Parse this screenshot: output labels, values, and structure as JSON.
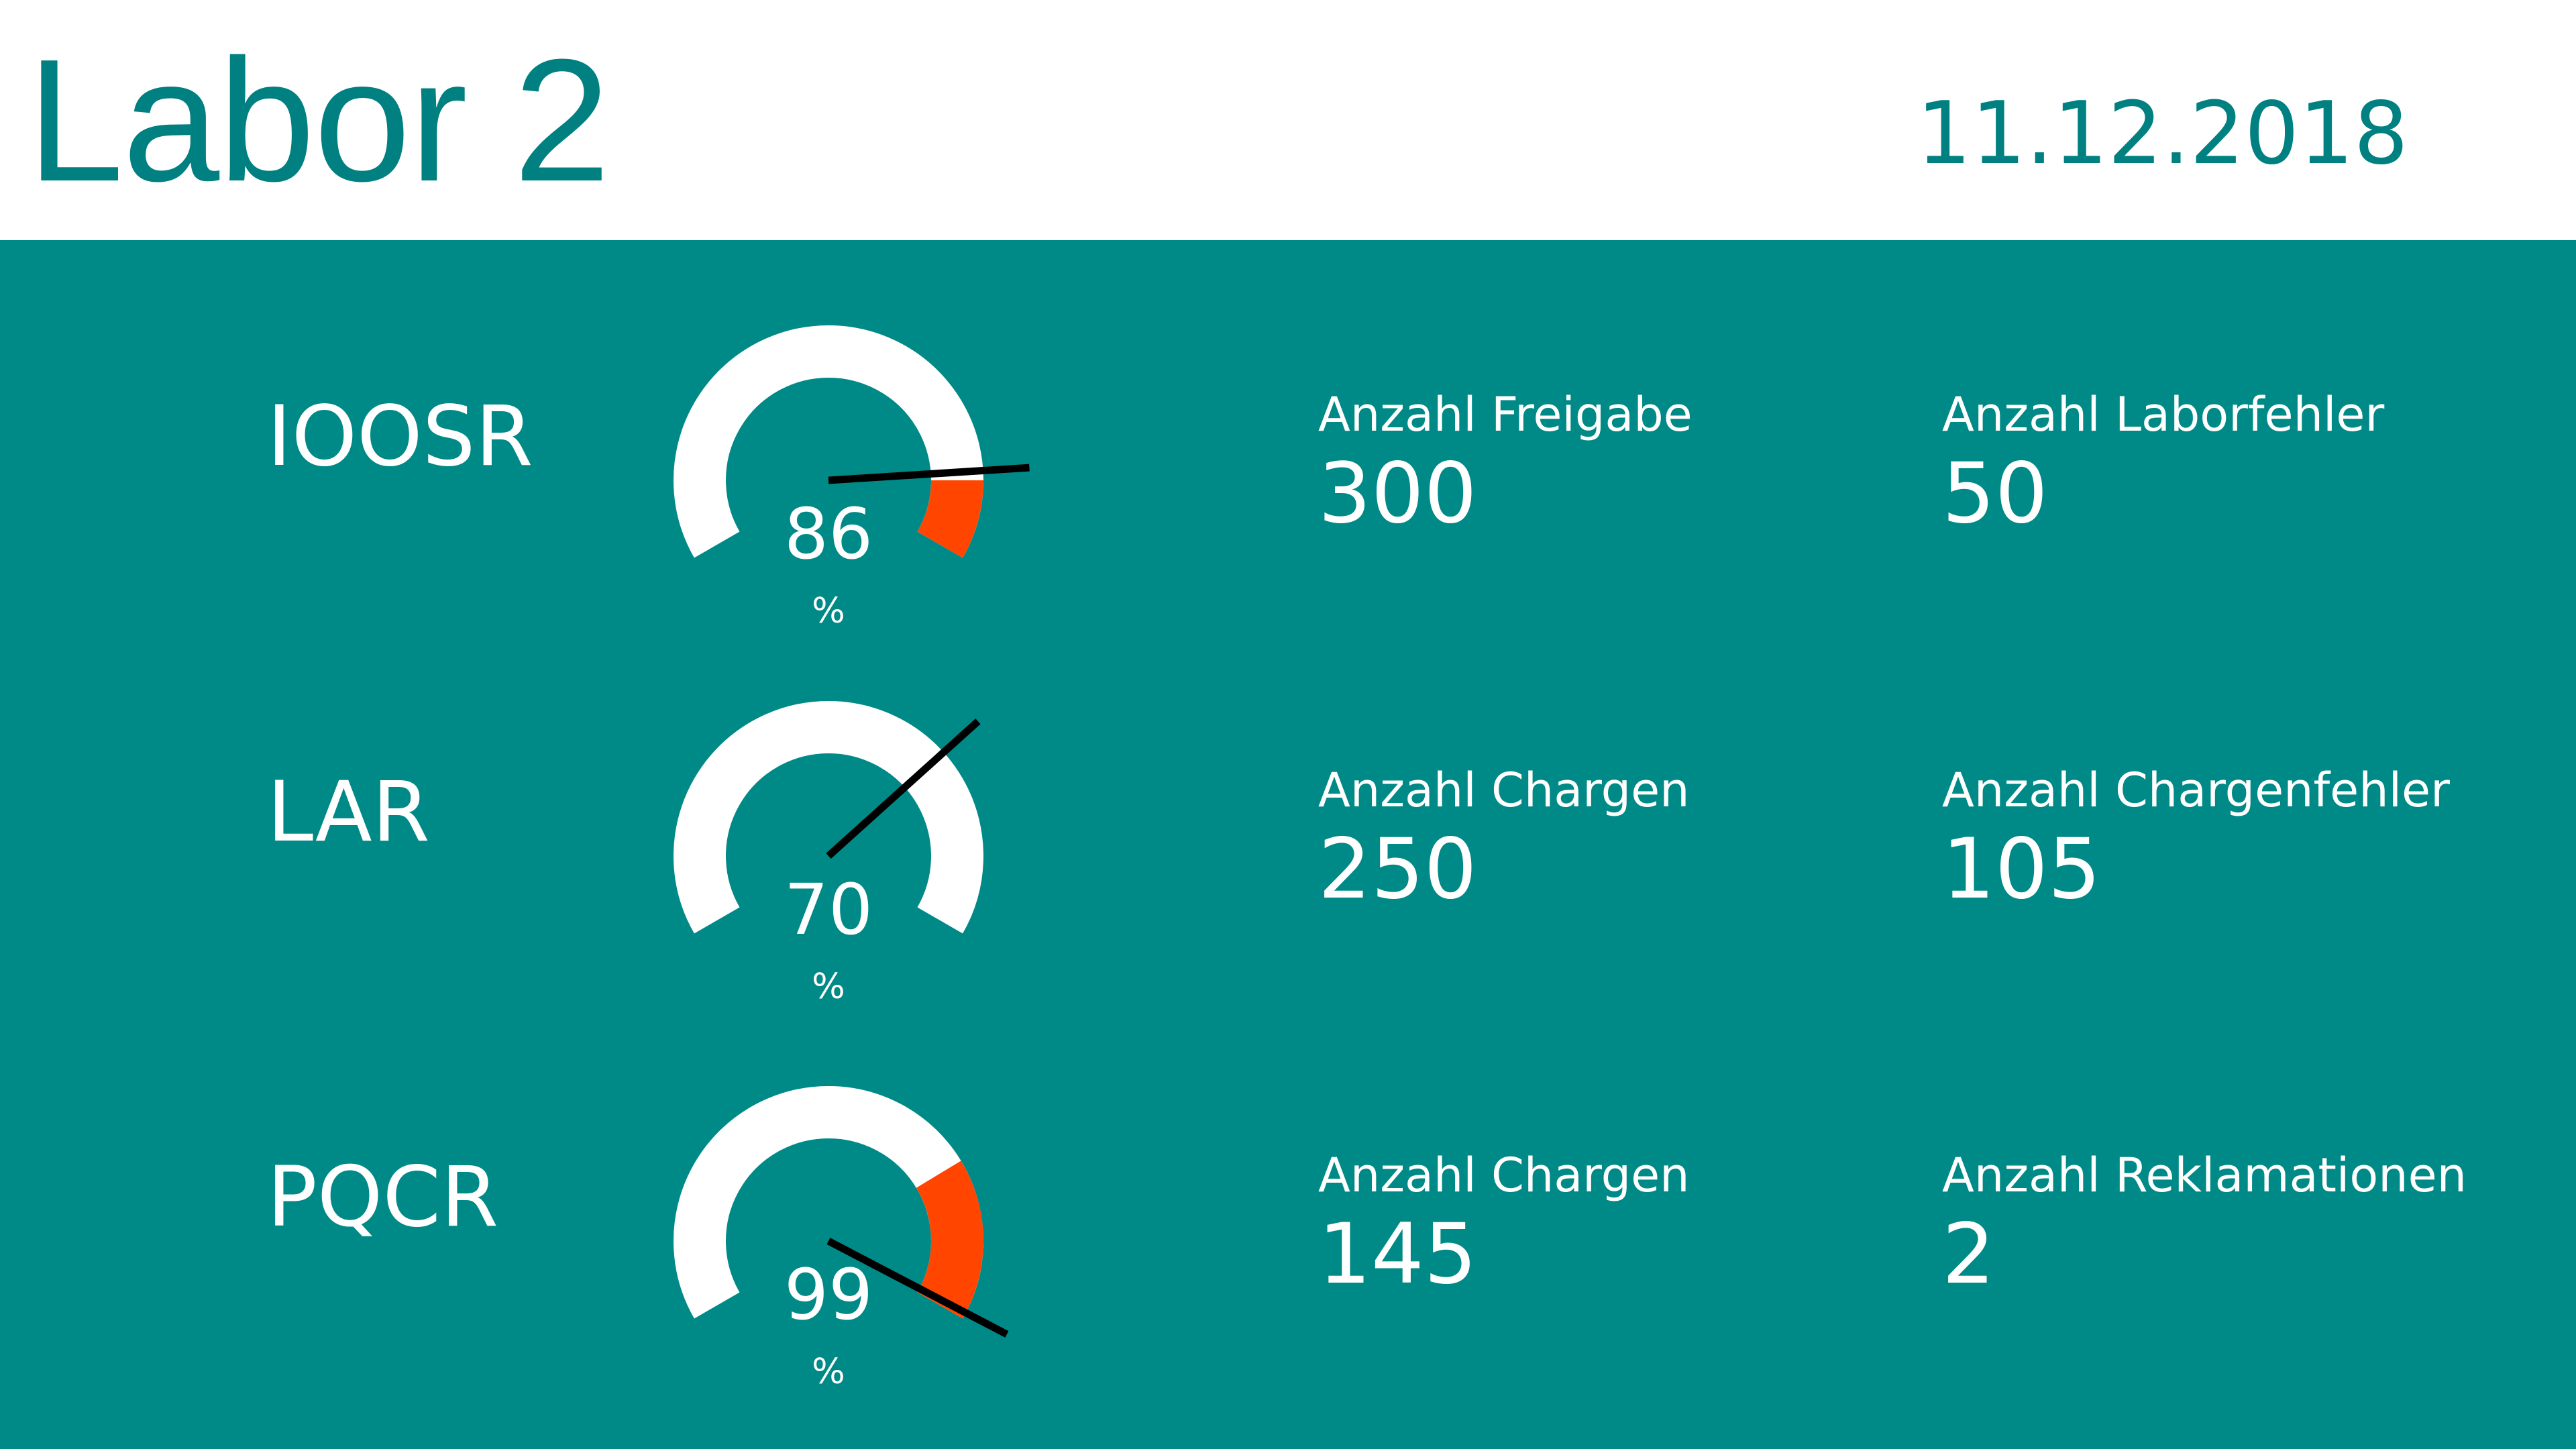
{
  "header": {
    "title": "Labor 2",
    "date": "11.12.2018"
  },
  "colors": {
    "accent": "#008080",
    "panel": "#008a87",
    "gauge_track": "#ffffff",
    "gauge_fill": "#ff4500",
    "needle": "#000000"
  },
  "rows": [
    {
      "name": "IOOSR",
      "gauge": {
        "value": 86,
        "display": "86",
        "unit": "%",
        "min": 0,
        "max": 100
      },
      "stats": [
        {
          "label": "Anzahl Freigabe",
          "value": "300"
        },
        {
          "label": "Anzahl Laborfehler",
          "value": "50"
        }
      ]
    },
    {
      "name": "LAR",
      "gauge": {
        "value": 70,
        "display": "70",
        "unit": "%",
        "min": 0,
        "max": 100
      },
      "stats": [
        {
          "label": "Anzahl Chargen",
          "value": "250"
        },
        {
          "label": "Anzahl Chargenfehler",
          "value": "105"
        }
      ]
    },
    {
      "name": "PQCR",
      "gauge": {
        "value": 99,
        "display": "99",
        "unit": "%",
        "min": 0,
        "max": 100
      },
      "stats": [
        {
          "label": "Anzahl Chargen",
          "value": "145"
        },
        {
          "label": "Anzahl Reklamationen",
          "value": "2"
        }
      ]
    }
  ]
}
